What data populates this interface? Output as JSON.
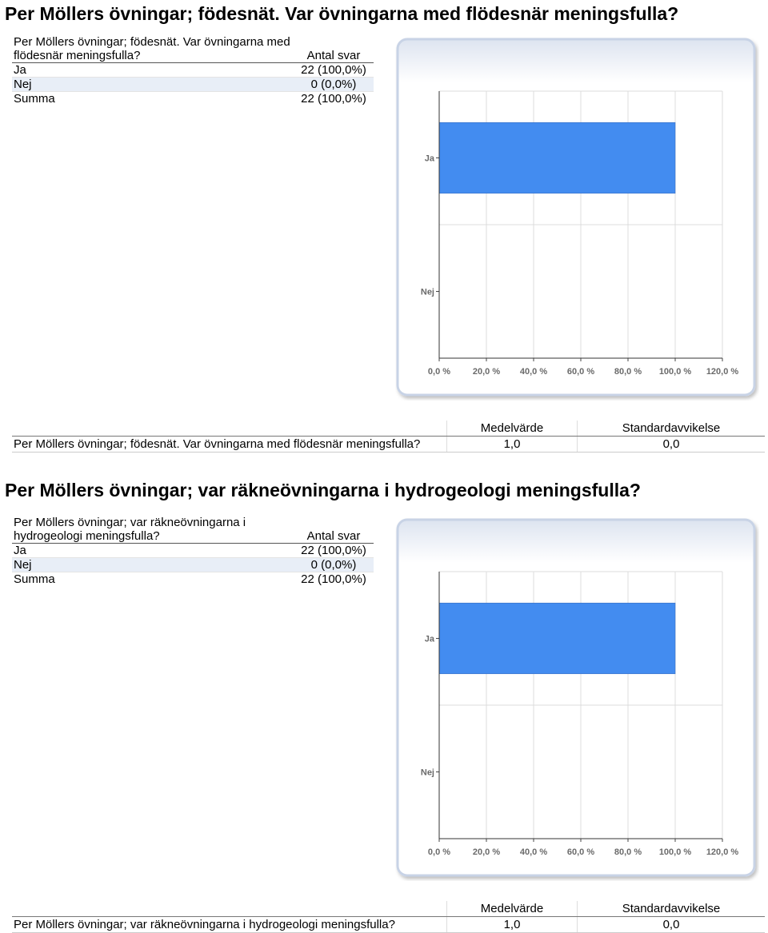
{
  "sections": [
    {
      "heading": "Per Möllers övningar; födesnät. Var övningarna med flödesnär meningsfulla?",
      "table": {
        "question": "Per Möllers övningar; födesnät. Var övningarna med flödesnär meningsfulla?",
        "col_header": "Antal svar",
        "rows": [
          {
            "label": "Ja",
            "value": "22 (100,0%)"
          },
          {
            "label": "Nej",
            "value": "0 (0,0%)"
          },
          {
            "label": "Summa",
            "value": "22 (100,0%)"
          }
        ]
      },
      "stats": {
        "mean_header": "Medelvärde",
        "sd_header": "Standardavvikelse",
        "label": "Per Möllers övningar; födesnät. Var övningarna med flödesnär meningsfulla?",
        "mean": "1,0",
        "sd": "0,0"
      }
    },
    {
      "heading": "Per Möllers övningar; var räkneövningarna i hydrogeologi meningsfulla?",
      "table": {
        "question": "Per Möllers övningar; var räkneövningarna i hydrogeologi meningsfulla?",
        "col_header": "Antal svar",
        "rows": [
          {
            "label": "Ja",
            "value": "22 (100,0%)"
          },
          {
            "label": "Nej",
            "value": "0 (0,0%)"
          },
          {
            "label": "Summa",
            "value": "22 (100,0%)"
          }
        ]
      },
      "stats": {
        "mean_header": "Medelvärde",
        "sd_header": "Standardavvikelse",
        "label": "Per Möllers övningar; var räkneövningarna i hydrogeologi meningsfulla?",
        "mean": "1,0",
        "sd": "0,0"
      }
    }
  ],
  "chart_data": [
    {
      "type": "bar",
      "orientation": "horizontal",
      "categories": [
        "Ja",
        "Nej"
      ],
      "values": [
        100.0,
        0.0
      ],
      "xlim": [
        0,
        120
      ],
      "xticks": [
        "0,0 %",
        "20,0 %",
        "40,0 %",
        "60,0 %",
        "80,0 %",
        "100,0 %",
        "120,0 %"
      ],
      "grid": true,
      "colors": {
        "bar": "#438cf0",
        "frame": "#c8d3e6"
      }
    },
    {
      "type": "bar",
      "orientation": "horizontal",
      "categories": [
        "Ja",
        "Nej"
      ],
      "values": [
        100.0,
        0.0
      ],
      "xlim": [
        0,
        120
      ],
      "xticks": [
        "0,0 %",
        "20,0 %",
        "40,0 %",
        "60,0 %",
        "80,0 %",
        "100,0 %",
        "120,0 %"
      ],
      "grid": true,
      "colors": {
        "bar": "#438cf0",
        "frame": "#c8d3e6"
      }
    }
  ]
}
